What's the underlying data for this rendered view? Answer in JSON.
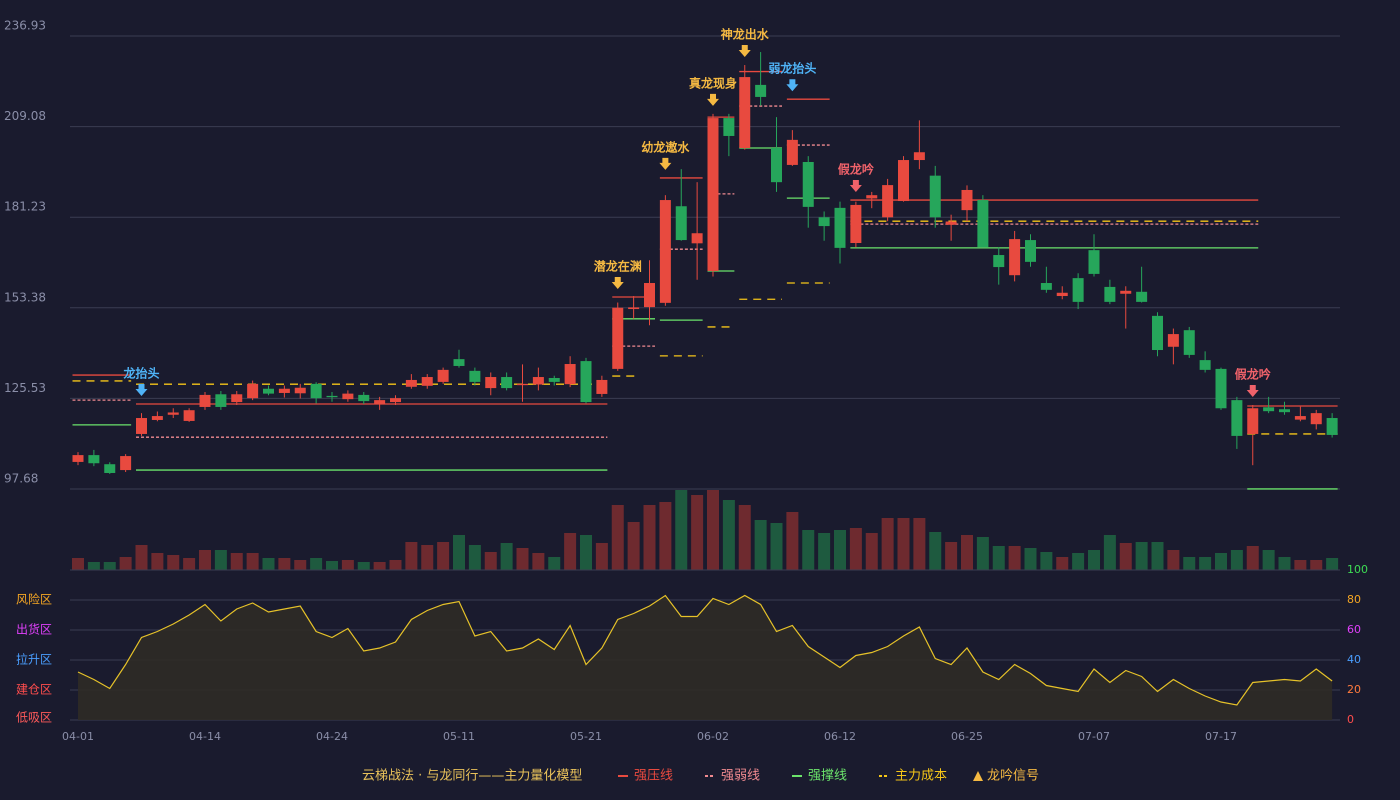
{
  "chart_data": {
    "type": "candlestick",
    "categories": [
      "04-01",
      null,
      null,
      null,
      null,
      null,
      null,
      null,
      "04-14",
      null,
      null,
      null,
      null,
      null,
      null,
      null,
      "04-24",
      null,
      null,
      null,
      null,
      null,
      null,
      null,
      "05-11",
      null,
      null,
      null,
      null,
      null,
      null,
      null,
      "05-21",
      null,
      null,
      null,
      null,
      null,
      null,
      null,
      "06-02",
      null,
      null,
      null,
      null,
      null,
      null,
      null,
      "06-12",
      null,
      null,
      null,
      null,
      null,
      null,
      null,
      "06-25",
      null,
      null,
      null,
      null,
      null,
      null,
      null,
      "07-07",
      null,
      null,
      null,
      null,
      null,
      null,
      null,
      "07-17",
      null,
      null,
      null,
      null,
      null,
      null,
      null
    ],
    "open": [
      106,
      108.1,
      105.3,
      103.5,
      114.6,
      118.9,
      120.5,
      118.6,
      122.9,
      126.8,
      124.4,
      125.6,
      128.5,
      127.2,
      127.1,
      130,
      126.3,
      125.3,
      126.6,
      123.8,
      124.4,
      129.1,
      129.4,
      130.6,
      137.6,
      134,
      128.7,
      132.1,
      129.6,
      129.8,
      131.8,
      129.9,
      137,
      126.9,
      134.6,
      153,
      153.6,
      154.9,
      184.6,
      173.2,
      164.7,
      211.7,
      202.5,
      221.9,
      202.5,
      197.3,
      198.2,
      181.2,
      184.1,
      173.3,
      187,
      181.2,
      186.2,
      198.8,
      194,
      178.9,
      183.4,
      186.5,
      169.6,
      163.4,
      174.2,
      161,
      157,
      162.5,
      171.1,
      159.8,
      157.7,
      158.3,
      150.9,
      141.4,
      146.5,
      137.3,
      134.6,
      125,
      114.6,
      122.8,
      122.2,
      119,
      117.6,
      119.5
    ],
    "high": [
      109,
      109.7,
      105.9,
      108.4,
      121,
      121.5,
      122.5,
      122.5,
      127.5,
      127.8,
      127.8,
      131,
      129.5,
      129.5,
      130,
      130.5,
      127.5,
      128,
      127.5,
      126,
      126.5,
      133,
      133,
      135,
      140.5,
      135,
      133.5,
      133.5,
      136,
      135,
      132.5,
      138.5,
      138,
      132.5,
      155,
      157,
      168,
      188,
      196,
      192,
      213,
      213,
      228,
      232,
      212,
      208,
      200,
      183,
      186,
      186,
      189,
      193,
      200,
      211,
      197,
      182,
      191,
      188,
      172,
      177,
      176,
      166,
      160,
      164,
      176,
      162,
      160,
      166,
      152,
      147,
      147.5,
      140,
      135,
      126,
      123.5,
      126,
      124.5,
      123,
      122,
      121
    ],
    "low": [
      105,
      104.7,
      102.3,
      102.9,
      114,
      118.5,
      119.5,
      118.3,
      122,
      122,
      123.5,
      125,
      126.5,
      125.8,
      125.5,
      124,
      124.5,
      124.5,
      123.8,
      122,
      123.5,
      128.5,
      128.5,
      130,
      135,
      129.5,
      126.5,
      128,
      124.5,
      128,
      129.5,
      129,
      124,
      126,
      134,
      150,
      148,
      154,
      174,
      162,
      163,
      200,
      202,
      215.5,
      189,
      197,
      178,
      174,
      167,
      172,
      184,
      180,
      186,
      196,
      178,
      174,
      180,
      172,
      160.5,
      161.5,
      166,
      158,
      156,
      153,
      163,
      154.5,
      147,
      155,
      138.5,
      136,
      138,
      133.5,
      122,
      110,
      105,
      121,
      120.5,
      118.5,
      116,
      113.5
    ],
    "close": [
      108.1,
      105.6,
      102.6,
      107.8,
      119.5,
      120.1,
      121.2,
      121.9,
      126.6,
      122.9,
      126.8,
      130,
      127,
      128.5,
      128.8,
      125.6,
      125.9,
      127,
      124.7,
      125,
      125.6,
      131.2,
      132.1,
      134.3,
      135.5,
      130.6,
      132.1,
      128.7,
      130,
      132.1,
      130.6,
      136.1,
      124.4,
      131.2,
      153.4,
      153.5,
      161,
      186.5,
      174.2,
      176.3,
      211.7,
      206.2,
      224.3,
      218.2,
      192,
      205,
      184.4,
      178.5,
      171.8,
      185,
      188,
      191.1,
      198.8,
      201.2,
      181.2,
      179.9,
      189.6,
      172,
      165.9,
      174.5,
      167.5,
      158.9,
      158,
      155.2,
      163.8,
      155.2,
      158.6,
      155.2,
      140.4,
      145.3,
      138.9,
      134.3,
      122.5,
      114,
      122.5,
      121.6,
      121.3,
      120.1,
      121,
      114.3
    ],
    "volume": [
      12,
      8,
      8,
      13,
      25,
      17,
      15,
      12,
      20,
      20,
      17,
      17,
      12,
      12,
      10,
      12,
      9,
      10,
      8,
      8,
      10,
      28,
      25,
      28,
      35,
      25,
      18,
      27,
      22,
      17,
      13,
      37,
      35,
      27,
      65,
      48,
      65,
      68,
      80,
      75,
      80,
      70,
      65,
      50,
      47,
      58,
      40,
      37,
      40,
      42,
      37,
      52,
      52,
      52,
      38,
      28,
      35,
      33,
      24,
      24,
      22,
      18,
      13,
      17,
      20,
      35,
      27,
      28,
      28,
      20,
      13,
      13,
      17,
      20,
      24,
      20,
      13,
      10,
      10,
      12
    ],
    "volume_lim": [
      0,
      80
    ],
    "ylim": [
      97.68,
      236.93
    ],
    "yticks": [
      97.68,
      125.53,
      153.38,
      181.23,
      209.08,
      236.93
    ],
    "grid": true,
    "up_color": "#e84a3f",
    "down_color": "#26a65b",
    "volume_up_color": "#6e2a2f",
    "volume_down_color": "#1e5a3f",
    "levels": [
      {
        "name": "强压线",
        "color": "#e84a3f",
        "dash": "none",
        "segments": [
          [
            0,
            3,
            132.7
          ],
          [
            4,
            33,
            123.8
          ],
          [
            34,
            36,
            156.7
          ],
          [
            37,
            39,
            193.3
          ],
          [
            40,
            41,
            212
          ],
          [
            42,
            44,
            226
          ],
          [
            45,
            47,
            217.5
          ],
          [
            49,
            74,
            186.5
          ],
          [
            74,
            79,
            123.2
          ]
        ]
      },
      {
        "name": "强弱线",
        "color": "#f08a90",
        "dash": "3,2",
        "segments": [
          [
            0,
            3,
            125
          ],
          [
            4,
            33,
            113.6
          ],
          [
            34,
            36,
            141.6
          ],
          [
            37,
            39,
            171.4
          ],
          [
            40,
            41,
            188.4
          ],
          [
            42,
            44,
            215.4
          ],
          [
            45,
            47,
            203.4
          ],
          [
            49,
            74,
            179.1
          ]
        ]
      },
      {
        "name": "强撑线",
        "color": "#6be36b",
        "dash": "none",
        "segments": [
          [
            0,
            3,
            117.4
          ],
          [
            4,
            33,
            103.5
          ],
          [
            34,
            36,
            150
          ],
          [
            37,
            39,
            149.6
          ],
          [
            40,
            41,
            164.7
          ],
          [
            42,
            44,
            202.5
          ],
          [
            45,
            47,
            187.1
          ],
          [
            49,
            74,
            171.8
          ],
          [
            74,
            79,
            97.7
          ]
        ]
      },
      {
        "name": "主力成本",
        "color": "#f5c518",
        "dash": "8,6",
        "segments": [
          [
            0,
            3,
            130.9
          ],
          [
            4,
            33,
            129.9
          ],
          [
            34,
            35,
            132.4
          ],
          [
            37,
            39,
            138.6
          ],
          [
            40,
            41,
            147.5
          ],
          [
            42,
            44,
            156
          ],
          [
            45,
            47,
            161
          ],
          [
            49,
            74,
            180
          ],
          [
            74,
            79,
            114.6
          ]
        ]
      }
    ],
    "annotations": [
      {
        "text": "龙抬头",
        "index": 4,
        "color": "#4fb3f6"
      },
      {
        "text": "潜龙在渊",
        "index": 34,
        "color": "#f5b942"
      },
      {
        "text": "幼龙遨水",
        "index": 37,
        "color": "#f5b942"
      },
      {
        "text": "真龙现身",
        "index": 40,
        "color": "#f5b942"
      },
      {
        "text": "神龙出水",
        "index": 42,
        "color": "#f5b942"
      },
      {
        "text": "弱龙抬头",
        "index": 45,
        "color": "#4fb3f6"
      },
      {
        "text": "假龙吟",
        "index": 49,
        "color": "#f0626a"
      },
      {
        "text": "假龙吟",
        "index": 74,
        "color": "#f0626a"
      }
    ],
    "indicator": {
      "values": [
        32,
        27,
        21,
        37,
        55,
        59,
        64,
        70,
        77,
        66,
        74,
        78,
        72,
        74,
        76,
        59,
        55,
        61,
        46,
        48,
        52,
        67,
        73,
        77,
        79,
        56,
        59,
        46,
        48,
        54,
        47,
        63,
        37,
        48,
        67,
        71,
        76,
        83,
        69,
        69,
        81,
        77,
        83,
        77,
        59,
        63,
        49,
        42,
        35,
        43,
        45,
        49,
        56,
        62,
        41,
        37,
        48,
        32,
        27,
        37,
        31,
        23,
        21,
        19,
        34,
        25,
        33,
        29,
        19,
        27,
        21,
        16,
        12,
        10,
        25,
        26,
        27,
        26,
        34,
        26
      ],
      "color": "#e6c229",
      "fill": "#2f2b26",
      "y2lim": [
        0,
        100
      ],
      "y2ticks": [
        0,
        20,
        40,
        60,
        80,
        100
      ],
      "y2tick_colors": [
        "#ff4d4d",
        "#ff7a3d",
        "#4a9eff",
        "#e040fb",
        "#f5a623",
        "#3ddc54"
      ],
      "zones": [
        {
          "label": "风险区",
          "value": 80,
          "color": "#f5a623"
        },
        {
          "label": "出货区",
          "value": 60,
          "color": "#e040fb"
        },
        {
          "label": "拉升区",
          "value": 40,
          "color": "#4a9eff"
        },
        {
          "label": "建仓区",
          "value": 20,
          "color": "#ff4d4d"
        },
        {
          "label": "低吸区",
          "value": 0,
          "color": "#ff5a5a"
        }
      ]
    },
    "legend": {
      "title": "云梯战法 · 与龙同行——主力量化模型",
      "title_color": "#e8c15a",
      "signal": "龙吟信号",
      "signal_color": "#f5b942"
    }
  }
}
